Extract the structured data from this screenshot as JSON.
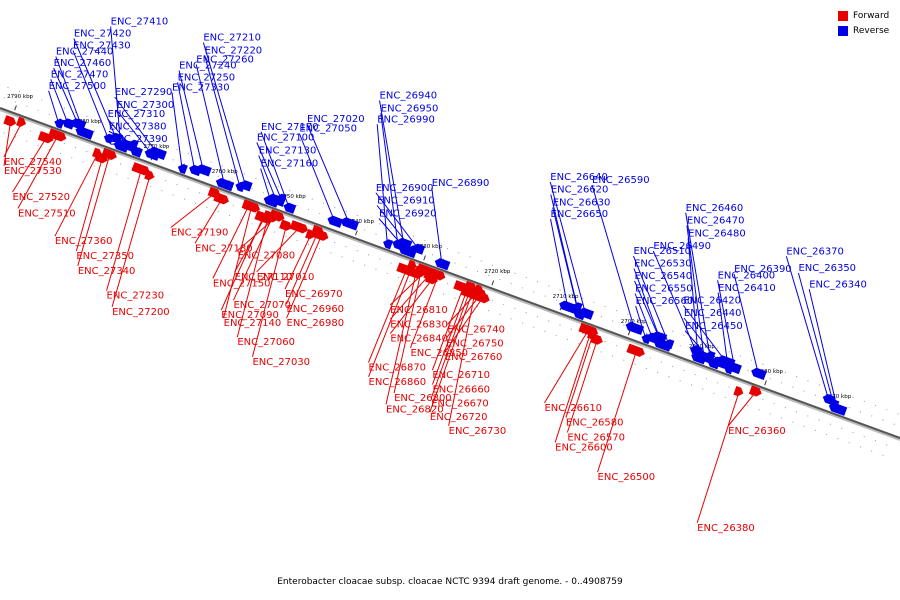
{
  "legend": {
    "forward_label": "Forward",
    "reverse_label": "Reverse",
    "forward_color": "#e60000",
    "reverse_color": "#0000e6"
  },
  "caption": "Enterobacter cloacae subsp. cloacae NCTC 9394 draft genome. - 0..4908759",
  "axis": {
    "start_kbp": 2660,
    "end_kbp": 2792,
    "tick_labels": [
      "2790 kbp",
      "2780 kbp",
      "2770 kbp",
      "2760 kbp",
      "2750 kbp",
      "2740 kbp",
      "2730 kbp",
      "2720 kbp",
      "2710 kbp",
      "2700 kbp",
      "2690 kbp",
      "2680 kbp",
      "2670 kbp"
    ]
  },
  "reverse_genes": [
    {
      "name": "ENC_27500",
      "kbp": 2783.7
    },
    {
      "name": "ENC_27470",
      "kbp": 2782.5
    },
    {
      "name": "ENC_27460",
      "kbp": 2781.2
    },
    {
      "name": "ENC_27440",
      "kbp": 2780.0
    },
    {
      "name": "ENC_27430",
      "kbp": 2776.6
    },
    {
      "name": "ENC_27420",
      "kbp": 2775.6
    },
    {
      "name": "ENC_27410",
      "kbp": 2774.6
    },
    {
      "name": "ENC_27390",
      "kbp": 2773.8
    },
    {
      "name": "ENC_27380",
      "kbp": 2773.1
    },
    {
      "name": "ENC_27310",
      "kbp": 2772.4
    },
    {
      "name": "ENC_27300",
      "kbp": 2770.2
    },
    {
      "name": "ENC_27290",
      "kbp": 2769.6
    },
    {
      "name": "ENC_27330",
      "kbp": 2765.6
    },
    {
      "name": "ENC_27250",
      "kbp": 2763.9
    },
    {
      "name": "ENC_27240",
      "kbp": 2762.8
    },
    {
      "name": "ENC_27260",
      "kbp": 2759.4
    },
    {
      "name": "ENC_27220",
      "kbp": 2757.3
    },
    {
      "name": "ENC_27210",
      "kbp": 2756.6
    },
    {
      "name": "ENC_27160",
      "kbp": 2752.6
    },
    {
      "name": "ENC_27130",
      "kbp": 2752.0
    },
    {
      "name": "ENC_27100",
      "kbp": 2751.4
    },
    {
      "name": "ENC_27170",
      "kbp": 2749.9
    },
    {
      "name": "ENC_27050",
      "kbp": 2743.4
    },
    {
      "name": "ENC_27020",
      "kbp": 2741.4
    },
    {
      "name": "ENC_26990",
      "kbp": 2735.5
    },
    {
      "name": "ENC_26950",
      "kbp": 2734.1
    },
    {
      "name": "ENC_26940",
      "kbp": 2733.4
    },
    {
      "name": "ENC_26920",
      "kbp": 2732.6
    },
    {
      "name": "ENC_26910",
      "kbp": 2732.0
    },
    {
      "name": "ENC_26900",
      "kbp": 2731.3
    },
    {
      "name": "ENC_26890",
      "kbp": 2727.5
    },
    {
      "name": "ENC_26650",
      "kbp": 2709.2
    },
    {
      "name": "ENC_26630",
      "kbp": 2708.0
    },
    {
      "name": "ENC_26620",
      "kbp": 2707.4
    },
    {
      "name": "ENC_26640",
      "kbp": 2706.6
    },
    {
      "name": "ENC_26590",
      "kbp": 2699.6
    },
    {
      "name": "ENC_26560",
      "kbp": 2697.6
    },
    {
      "name": "ENC_26550",
      "kbp": 2696.8
    },
    {
      "name": "ENC_26540",
      "kbp": 2696.0
    },
    {
      "name": "ENC_26530",
      "kbp": 2695.2
    },
    {
      "name": "ENC_26510",
      "kbp": 2694.4
    },
    {
      "name": "ENC_26490",
      "kbp": 2690.6
    },
    {
      "name": "ENC_26480",
      "kbp": 2689.9
    },
    {
      "name": "ENC_26470",
      "kbp": 2689.2
    },
    {
      "name": "ENC_26460",
      "kbp": 2688.5
    },
    {
      "name": "ENC_26450",
      "kbp": 2687.7
    },
    {
      "name": "ENC_26440",
      "kbp": 2687.0
    },
    {
      "name": "ENC_26420",
      "kbp": 2686.2
    },
    {
      "name": "ENC_26410",
      "kbp": 2685.5
    },
    {
      "name": "ENC_26400",
      "kbp": 2684.7
    },
    {
      "name": "ENC_26390",
      "kbp": 2681.4
    },
    {
      "name": "ENC_26340",
      "kbp": 2669.5
    },
    {
      "name": "ENC_26350",
      "kbp": 2670.2
    },
    {
      "name": "ENC_26370",
      "kbp": 2671.1
    }
  ],
  "forward_genes": [
    {
      "name": "ENC_27540",
      "kbp": 2788.5
    },
    {
      "name": "ENC_27530",
      "kbp": 2790.0
    },
    {
      "name": "ENC_27520",
      "kbp": 2784.6
    },
    {
      "name": "ENC_27510",
      "kbp": 2783.2
    },
    {
      "name": "ENC_27360",
      "kbp": 2777.2
    },
    {
      "name": "ENC_27350",
      "kbp": 2776.4
    },
    {
      "name": "ENC_27340",
      "kbp": 2775.6
    },
    {
      "name": "ENC_27230",
      "kbp": 2770.8
    },
    {
      "name": "ENC_27200",
      "kbp": 2769.4
    },
    {
      "name": "ENC_27190",
      "kbp": 2760.2
    },
    {
      "name": "ENC_27180",
      "kbp": 2759.0
    },
    {
      "name": "ENC_27110",
      "kbp": 2752.6
    },
    {
      "name": "ENC_27150",
      "kbp": 2755.2
    },
    {
      "name": "ENC_27070",
      "kbp": 2751.6
    },
    {
      "name": "ENC_27090",
      "kbp": 2752.8
    },
    {
      "name": "ENC_27140",
      "kbp": 2754.8
    },
    {
      "name": "ENC_27060",
      "kbp": 2752.2
    },
    {
      "name": "ENC_27030",
      "kbp": 2749.4
    },
    {
      "name": "ENC_27080",
      "kbp": 2751.0
    },
    {
      "name": "ENC_27010",
      "kbp": 2747.6
    },
    {
      "name": "ENC_26970",
      "kbp": 2745.8
    },
    {
      "name": "ENC_26960",
      "kbp": 2745.0
    },
    {
      "name": "ENC_26980",
      "kbp": 2744.4
    },
    {
      "name": "ENC_26870",
      "kbp": 2731.8
    },
    {
      "name": "ENC_26860",
      "kbp": 2731.2
    },
    {
      "name": "ENC_26800",
      "kbp": 2729.8
    },
    {
      "name": "ENC_26820",
      "kbp": 2730.4
    },
    {
      "name": "ENC_26810",
      "kbp": 2729.2
    },
    {
      "name": "ENC_26830",
      "kbp": 2728.6
    },
    {
      "name": "ENC_26840",
      "kbp": 2728.0
    },
    {
      "name": "ENC_26850",
      "kbp": 2727.4
    },
    {
      "name": "ENC_26710",
      "kbp": 2723.6
    },
    {
      "name": "ENC_26660",
      "kbp": 2723.0
    },
    {
      "name": "ENC_26670",
      "kbp": 2722.6
    },
    {
      "name": "ENC_26720",
      "kbp": 2722.2
    },
    {
      "name": "ENC_26730",
      "kbp": 2721.8
    },
    {
      "name": "ENC_26740",
      "kbp": 2721.4
    },
    {
      "name": "ENC_26750",
      "kbp": 2721.0
    },
    {
      "name": "ENC_26760",
      "kbp": 2720.6
    },
    {
      "name": "ENC_26610",
      "kbp": 2705.4
    },
    {
      "name": "ENC_26580",
      "kbp": 2704.6
    },
    {
      "name": "ENC_26570",
      "kbp": 2703.8
    },
    {
      "name": "ENC_26600",
      "kbp": 2705.0
    },
    {
      "name": "ENC_26500",
      "kbp": 2698.2
    },
    {
      "name": "ENC_26380",
      "kbp": 2683.0
    },
    {
      "name": "ENC_26360",
      "kbp": 2680.8
    }
  ]
}
